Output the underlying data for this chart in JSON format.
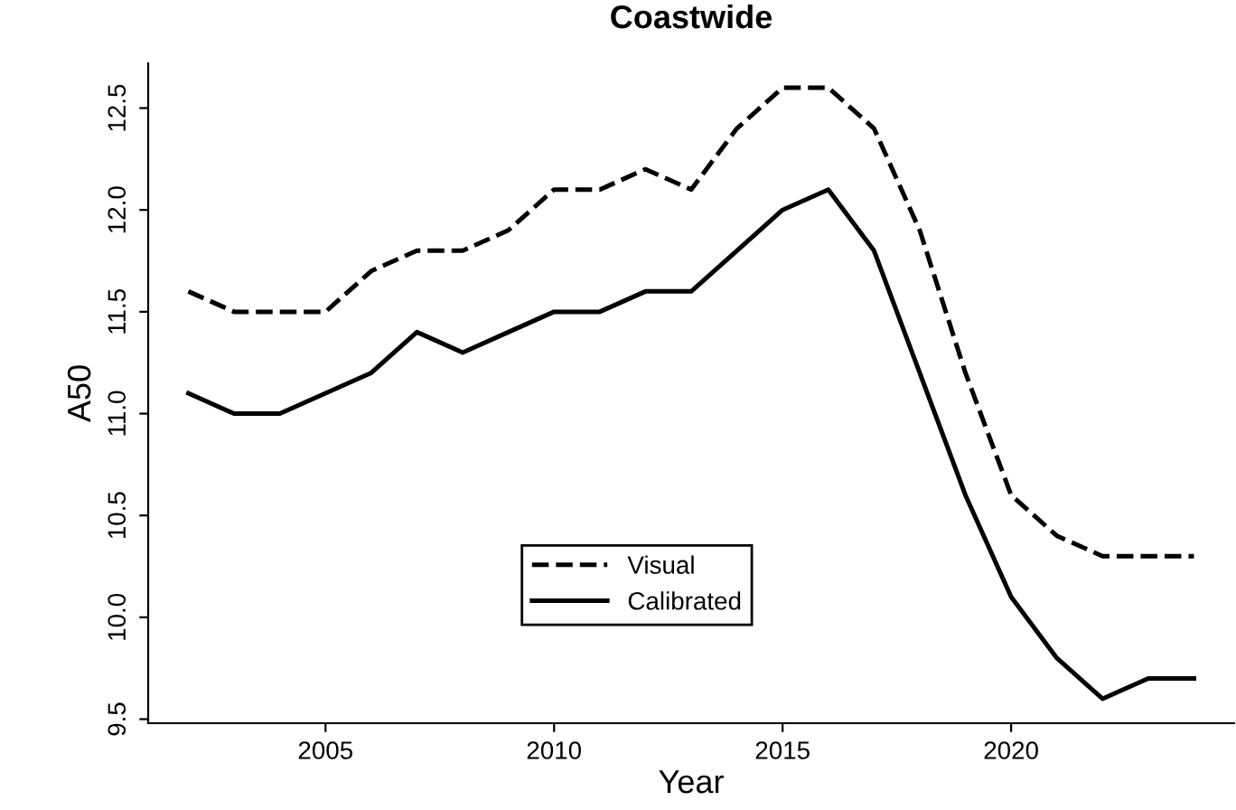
{
  "chart_data": {
    "type": "line",
    "title": "Coastwide",
    "xlabel": "Year",
    "ylabel": "A50",
    "x": [
      2002,
      2003,
      2004,
      2005,
      2006,
      2007,
      2008,
      2009,
      2010,
      2011,
      2012,
      2013,
      2014,
      2015,
      2016,
      2017,
      2018,
      2019,
      2020,
      2021,
      2022,
      2023,
      2024
    ],
    "series": [
      {
        "name": "Visual",
        "color": "#000000",
        "line_style": "dashed",
        "values": [
          11.6,
          11.5,
          11.5,
          11.5,
          11.7,
          11.8,
          11.8,
          11.9,
          12.1,
          12.1,
          12.2,
          12.1,
          12.4,
          12.6,
          12.6,
          12.4,
          11.9,
          11.2,
          10.6,
          10.4,
          10.3,
          10.3,
          10.3
        ]
      },
      {
        "name": "Calibrated",
        "color": "#000000",
        "line_style": "solid",
        "values": [
          11.1,
          11.0,
          11.0,
          11.1,
          11.2,
          11.4,
          11.3,
          11.4,
          11.5,
          11.5,
          11.6,
          11.6,
          11.8,
          12.0,
          12.1,
          11.8,
          11.2,
          10.6,
          10.1,
          9.8,
          9.6,
          9.7,
          9.7
        ]
      }
    ],
    "xlim": [
      2001.12,
      2024.88
    ],
    "xticks": [
      2005,
      2010,
      2015,
      2020
    ],
    "ylim": [
      9.48,
      12.72
    ],
    "yticks": [
      9.5,
      {
        "value": 10,
        "label": "10.0"
      },
      10.5,
      {
        "value": 11,
        "label": "11.0"
      },
      11.5,
      {
        "value": 12,
        "label": "12.0"
      },
      12.5
    ],
    "grid": false,
    "legend": "bottom"
  }
}
